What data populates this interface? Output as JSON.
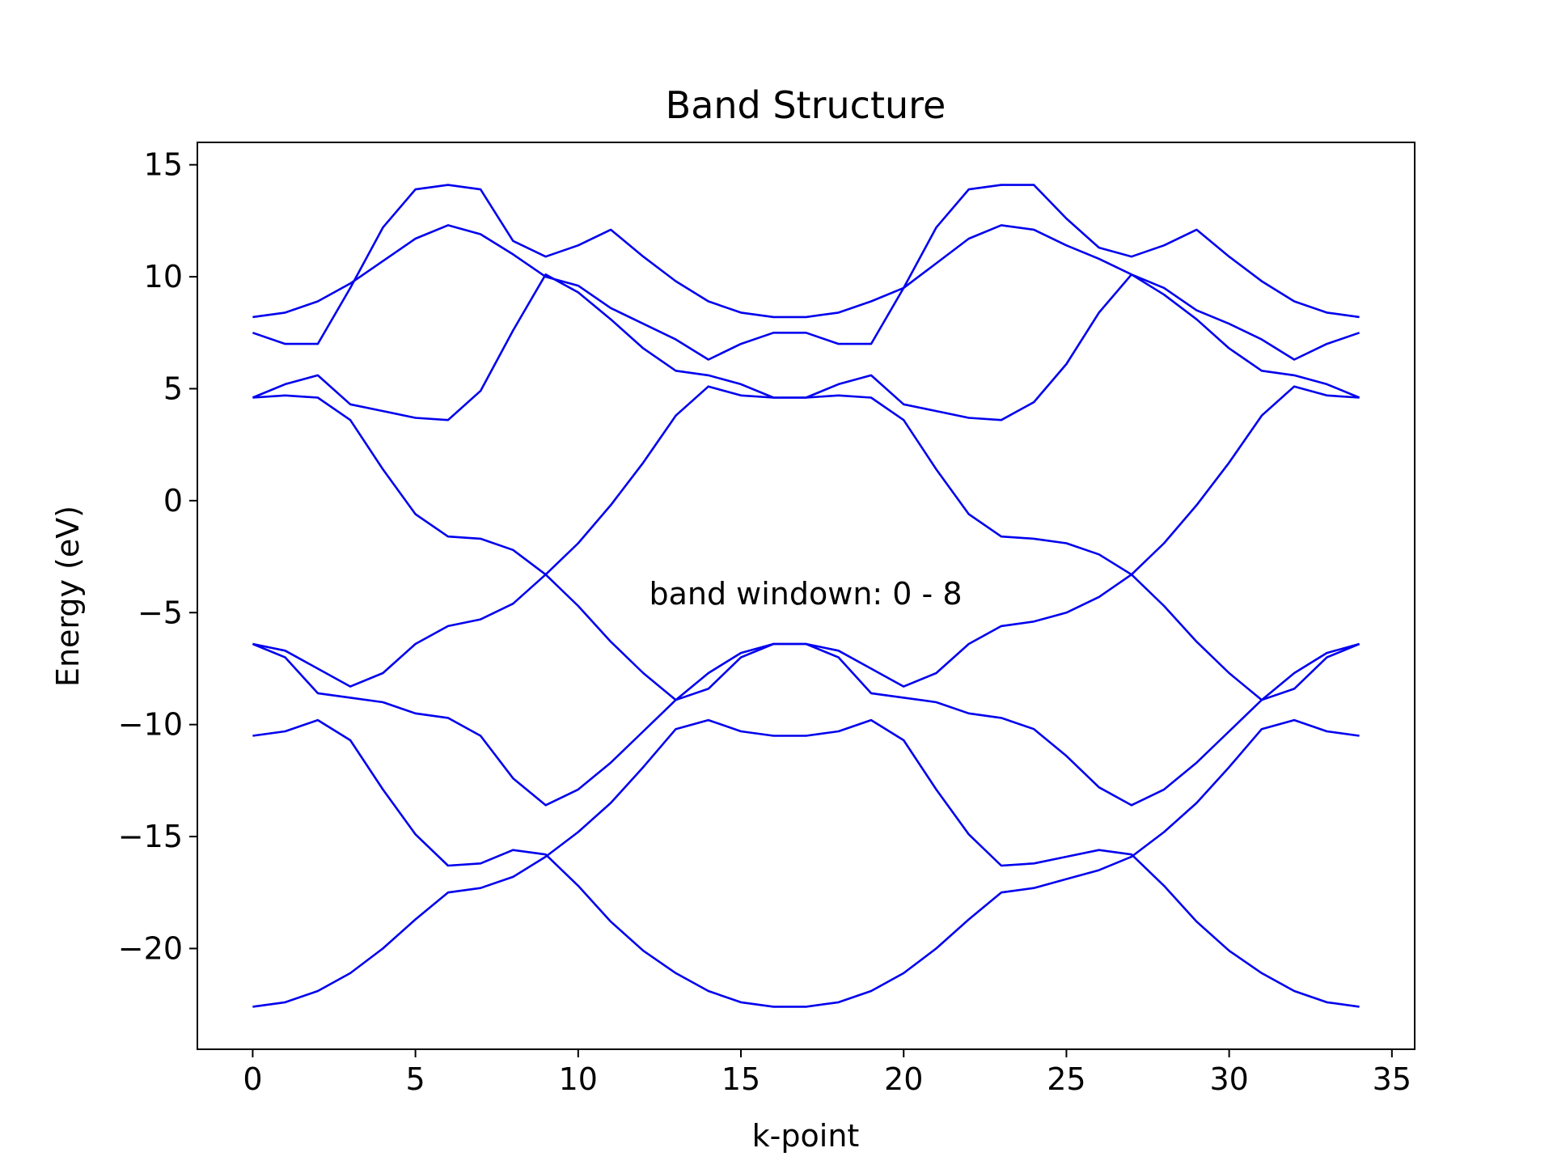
{
  "chart_data": {
    "type": "line",
    "title": "Band Structure",
    "xlabel": "k-point",
    "ylabel": "Energy (eV)",
    "annotation": "band windown: 0 - 8",
    "xlim": [
      -1.7,
      35.7
    ],
    "ylim": [
      -24.5,
      16.0
    ],
    "xticks": [
      0,
      5,
      10,
      15,
      20,
      25,
      30,
      35
    ],
    "xtick_labels": [
      "0",
      "5",
      "10",
      "15",
      "20",
      "25",
      "30",
      "35"
    ],
    "yticks": [
      15,
      10,
      5,
      0,
      -5,
      -10,
      -15,
      -20
    ],
    "ytick_labels": [
      "15",
      "10",
      "5",
      "0",
      "−5",
      "−10",
      "−15",
      "−20"
    ],
    "grid": false,
    "line_color": "#0000ee",
    "x": [
      0,
      1,
      2,
      3,
      4,
      5,
      6,
      7,
      8,
      9,
      10,
      11,
      12,
      13,
      14,
      15,
      16,
      17,
      18,
      19,
      20,
      21,
      22,
      23,
      24,
      25,
      26,
      27,
      28,
      29,
      30,
      31,
      32,
      33,
      34
    ],
    "series": [
      {
        "values": [
          -22.6,
          -22.4,
          -21.9,
          -21.1,
          -20.0,
          -18.7,
          -17.5,
          -17.3,
          -16.8,
          -15.9,
          -14.8,
          -13.5,
          -11.9,
          -10.2,
          -9.8,
          -10.3,
          -10.5,
          -10.5,
          -10.3,
          -9.8,
          -10.7,
          -12.9,
          -14.9,
          -16.3,
          -16.2,
          -15.9,
          -15.6,
          -15.8,
          -17.2,
          -18.8,
          -20.1,
          -21.1,
          -21.9,
          -22.4,
          -22.6
        ]
      },
      {
        "values": [
          -10.5,
          -10.3,
          -9.8,
          -10.7,
          -12.9,
          -14.9,
          -16.3,
          -16.2,
          -15.6,
          -15.8,
          -17.2,
          -18.8,
          -20.1,
          -21.1,
          -21.9,
          -22.4,
          -22.6,
          -22.6,
          -22.4,
          -21.9,
          -21.1,
          -20.0,
          -18.7,
          -17.5,
          -17.3,
          -16.9,
          -16.5,
          -15.9,
          -14.8,
          -13.5,
          -11.9,
          -10.2,
          -9.8,
          -10.3,
          -10.5
        ]
      },
      {
        "values": [
          -6.4,
          -6.7,
          -7.5,
          -8.3,
          -7.7,
          -6.4,
          -5.6,
          -5.3,
          -4.6,
          -3.3,
          -1.9,
          -0.2,
          1.7,
          3.8,
          5.1,
          4.7,
          4.6,
          4.6,
          4.7,
          4.6,
          3.6,
          1.4,
          -0.6,
          -1.6,
          -1.7,
          -1.9,
          -2.4,
          -3.3,
          -4.7,
          -6.3,
          -7.7,
          -8.9,
          -8.4,
          -7.0,
          -6.4
        ]
      },
      {
        "values": [
          -6.4,
          -7.0,
          -8.6,
          -8.8,
          -9.0,
          -9.5,
          -9.7,
          -10.5,
          -12.4,
          -13.6,
          -12.9,
          -11.7,
          -10.3,
          -8.9,
          -7.7,
          -6.8,
          -6.4,
          -6.4,
          -6.7,
          -7.5,
          -8.3,
          -7.7,
          -6.4,
          -5.6,
          -5.4,
          -5.0,
          -4.3,
          -3.3,
          -1.9,
          -0.2,
          1.7,
          3.8,
          5.1,
          4.7,
          4.6
        ]
      },
      {
        "values": [
          4.6,
          4.7,
          4.6,
          3.6,
          1.4,
          -0.6,
          -1.6,
          -1.7,
          -2.2,
          -3.3,
          -4.7,
          -6.3,
          -7.7,
          -8.9,
          -8.4,
          -7.0,
          -6.4,
          -6.4,
          -7.0,
          -8.6,
          -8.8,
          -9.0,
          -9.5,
          -9.7,
          -10.2,
          -11.4,
          -12.8,
          -13.6,
          -12.9,
          -11.7,
          -10.3,
          -8.9,
          -7.7,
          -6.8,
          -6.4
        ]
      },
      {
        "values": [
          4.6,
          5.2,
          5.6,
          4.3,
          4.0,
          3.7,
          3.6,
          4.9,
          7.6,
          10.1,
          9.3,
          8.1,
          6.8,
          5.8,
          5.6,
          5.2,
          4.6,
          4.6,
          5.2,
          5.6,
          4.3,
          4.0,
          3.7,
          3.6,
          4.4,
          6.1,
          8.4,
          10.1,
          9.2,
          8.1,
          6.8,
          5.8,
          5.6,
          5.2,
          4.6
        ]
      },
      {
        "values": [
          7.5,
          7.0,
          7.0,
          9.5,
          12.2,
          13.9,
          14.1,
          13.9,
          11.6,
          10.9,
          11.4,
          12.1,
          10.9,
          9.8,
          8.9,
          8.4,
          8.2,
          8.2,
          8.4,
          8.9,
          9.5,
          10.6,
          11.7,
          12.3,
          12.1,
          11.4,
          10.8,
          10.1,
          9.5,
          8.5,
          7.9,
          7.2,
          6.3,
          7.0,
          7.5
        ]
      },
      {
        "values": [
          8.2,
          8.4,
          8.9,
          9.7,
          10.7,
          11.7,
          12.3,
          11.9,
          11.0,
          10.0,
          9.6,
          8.6,
          7.9,
          7.2,
          6.3,
          7.0,
          7.5,
          7.5,
          7.0,
          7.0,
          9.5,
          12.2,
          13.9,
          14.1,
          14.1,
          12.6,
          11.3,
          10.9,
          11.4,
          12.1,
          10.9,
          9.8,
          8.9,
          8.4,
          8.2
        ]
      }
    ]
  }
}
